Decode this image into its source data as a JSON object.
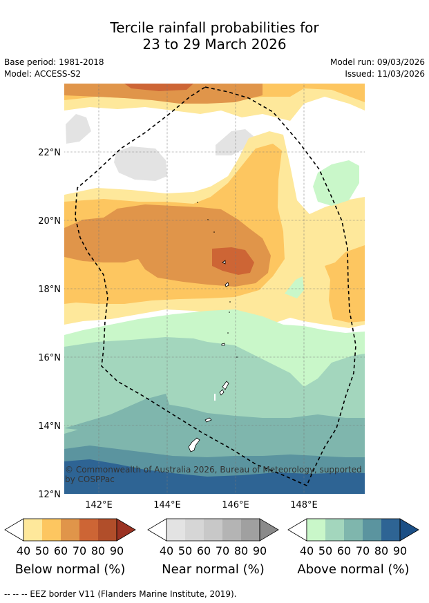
{
  "title": {
    "line1": "Tercile rainfall probabilities for",
    "line2": "23 to 29 March 2026"
  },
  "meta": {
    "base_period": "Base period: 1981-2018",
    "model": "Model: ACCESS-S2",
    "model_run": "Model run: 09/03/2026",
    "issued": "Issued: 11/03/2026"
  },
  "map": {
    "lat_labels": [
      "22°N",
      "20°N",
      "18°N",
      "16°N",
      "14°N",
      "12°N"
    ],
    "lon_labels": [
      "142°E",
      "144°E",
      "146°E",
      "148°E"
    ],
    "credit_line1": "© Commonwealth of Australia 2026, Bureau of Meteorology, supported",
    "credit_line2": "by COSPPac"
  },
  "colorbars": [
    {
      "label": "Below normal (%)",
      "ticks": [
        "40",
        "50",
        "60",
        "70",
        "80",
        "90"
      ],
      "colors": [
        "#fee89b",
        "#fdc660",
        "#e0954a",
        "#cd6535",
        "#b14e2a",
        "#9b3222"
      ]
    },
    {
      "label": "Near normal (%)",
      "ticks": [
        "40",
        "50",
        "60",
        "70",
        "80",
        "90"
      ],
      "colors": [
        "#e3e3e3",
        "#d6d6d6",
        "#c8c8c8",
        "#b4b4b4",
        "#a0a0a0",
        "#8a8a8a"
      ]
    },
    {
      "label": "Above normal (%)",
      "ticks": [
        "40",
        "50",
        "60",
        "70",
        "80",
        "90"
      ],
      "colors": [
        "#c9f7c9",
        "#a3d6bd",
        "#7fb6ad",
        "#5b949f",
        "#2e6494",
        "#1b4f86"
      ]
    }
  ],
  "footer": "--  --  -- EEZ border V11 (Flanders Marine Institute, 2019)."
}
